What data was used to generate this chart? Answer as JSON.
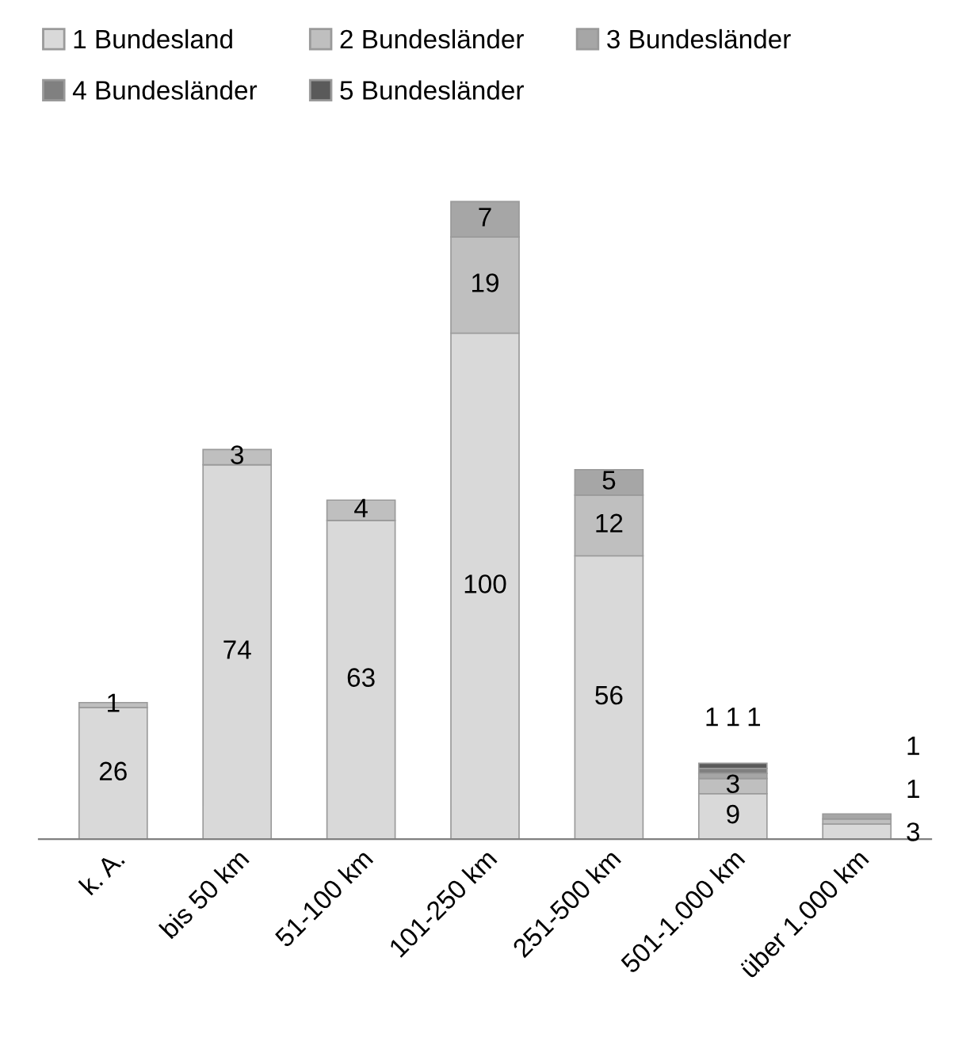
{
  "chart_data": {
    "type": "bar",
    "stacked": true,
    "data_labels": true,
    "legend": "top left",
    "grid": false,
    "categories": [
      "k. A.",
      "bis 50 km",
      "51-100 km",
      "101-250 km",
      "251-500 km",
      "501-1.000 km",
      "über 1.000 km"
    ],
    "series": [
      {
        "name": "1 Bundesland",
        "color": "#d9d9d9",
        "values": [
          26,
          74,
          63,
          100,
          56,
          9,
          3
        ]
      },
      {
        "name": "2 Bundesländer",
        "color": "#bfbfbf",
        "values": [
          1,
          3,
          4,
          19,
          12,
          3,
          1
        ]
      },
      {
        "name": "3 Bundesländer",
        "color": "#a6a6a6",
        "values": [
          null,
          null,
          null,
          7,
          5,
          1,
          1
        ]
      },
      {
        "name": "4 Bundesländer",
        "color": "#808080",
        "values": [
          null,
          null,
          null,
          null,
          null,
          1,
          null
        ]
      },
      {
        "name": "5 Bundesländer",
        "color": "#5a5a5a",
        "values": [
          null,
          null,
          null,
          null,
          null,
          1,
          null
        ]
      }
    ]
  }
}
